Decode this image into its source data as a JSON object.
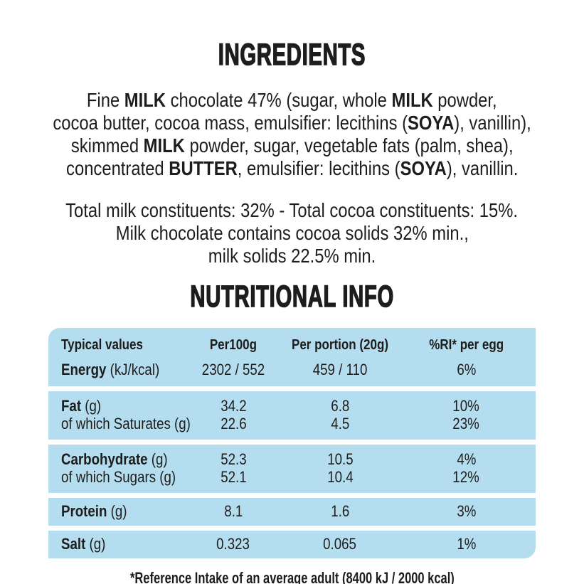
{
  "page": {
    "background": "#ffffff",
    "text_color": "#1d1d1b",
    "table_fill_blue": "#b5ddf0"
  },
  "ingredients": {
    "title": "INGREDIENTS",
    "lines": [
      {
        "segments": [
          {
            "text": "Fine ",
            "bold": false
          },
          {
            "text": "MILK",
            "bold": true
          },
          {
            "text": " chocolate 47% (sugar, whole ",
            "bold": false
          },
          {
            "text": "MILK",
            "bold": true
          },
          {
            "text": " powder,",
            "bold": false
          }
        ]
      },
      {
        "segments": [
          {
            "text": "cocoa butter, cocoa mass, emulsifier: lecithins (",
            "bold": false
          },
          {
            "text": "SOYA",
            "bold": true
          },
          {
            "text": "), vanillin),",
            "bold": false
          }
        ]
      },
      {
        "segments": [
          {
            "text": "skimmed ",
            "bold": false
          },
          {
            "text": "MILK",
            "bold": true
          },
          {
            "text": " powder, sugar, vegetable fats (palm, shea),",
            "bold": false
          }
        ]
      },
      {
        "segments": [
          {
            "text": "concentrated ",
            "bold": false
          },
          {
            "text": "BUTTER",
            "bold": true
          },
          {
            "text": ", emulsifier: lecithins (",
            "bold": false
          },
          {
            "text": "SOYA",
            "bold": true
          },
          {
            "text": "), vanillin.",
            "bold": false
          }
        ]
      }
    ],
    "constituents_lines": [
      "Total milk constituents: 32% - Total cocoa constituents: 15%.",
      "Milk chocolate contains cocoa solids 32% min.,",
      "milk solids 22.5% min."
    ]
  },
  "nutrition": {
    "title": "NUTRITIONAL INFO",
    "table": {
      "header": {
        "col1": "Typical values",
        "col2": "Per100g",
        "col3": "Per portion (20g)",
        "col4": "%RI* per egg"
      },
      "rows": {
        "energy": {
          "label_bold": "Energy",
          "label_rest": " (kJ/kcal)",
          "per_100g": "2302 / 552",
          "per_portion": "459 / 110",
          "ri_per_egg": "6%"
        },
        "fat": {
          "label_bold": "Fat",
          "label_rest": " (g)",
          "per_100g": "34.2",
          "per_portion": "6.8",
          "ri_per_egg": "10%"
        },
        "saturates": {
          "label_bold": "",
          "label_rest": "of which Saturates (g)",
          "per_100g": "22.6",
          "per_portion": "4.5",
          "ri_per_egg": "23%"
        },
        "carbohydrate": {
          "label_bold": "Carbohydrate",
          "label_rest": " (g)",
          "per_100g": "52.3",
          "per_portion": "10.5",
          "ri_per_egg": "4%"
        },
        "sugars": {
          "label_bold": "",
          "label_rest": "of which Sugars (g)",
          "per_100g": "52.1",
          "per_portion": "10.4",
          "ri_per_egg": "12%"
        },
        "protein": {
          "label_bold": "Protein",
          "label_rest": " (g)",
          "per_100g": "8.1",
          "per_portion": "1.6",
          "ri_per_egg": "3%"
        },
        "salt": {
          "label_bold": "Salt",
          "label_rest": " (g)",
          "per_100g": "0.323",
          "per_portion": "0.065",
          "ri_per_egg": "1%"
        }
      }
    },
    "footnote": "*Reference Intake of an average adult (8400 kJ / 2000 kcal)"
  }
}
